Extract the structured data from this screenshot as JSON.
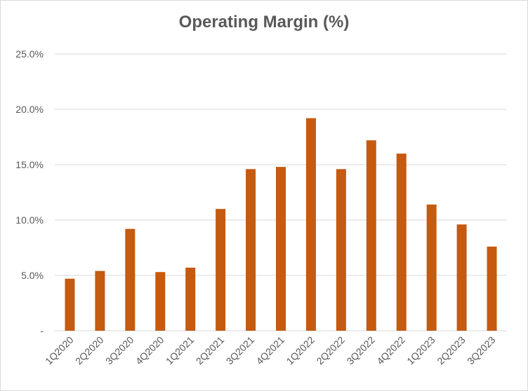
{
  "chart_data": {
    "type": "bar",
    "title": "Operating Margin (%)",
    "xlabel": "",
    "ylabel": "",
    "categories": [
      "1Q2020",
      "2Q2020",
      "3Q2020",
      "4Q2020",
      "1Q2021",
      "2Q2021",
      "3Q2021",
      "4Q2021",
      "1Q2022",
      "2Q2022",
      "3Q2022",
      "4Q2022",
      "1Q2023",
      "2Q2023",
      "3Q2023"
    ],
    "values": [
      4.7,
      5.4,
      9.2,
      5.3,
      5.7,
      11.0,
      14.6,
      14.8,
      19.2,
      14.6,
      17.2,
      16.0,
      11.4,
      9.6,
      7.6
    ],
    "ylim": [
      0,
      25
    ],
    "y_ticks": [
      0,
      5,
      10,
      15,
      20,
      25
    ],
    "y_tick_labels": [
      "-",
      "5.0%",
      "10.0%",
      "15.0%",
      "20.0%",
      "25.0%"
    ],
    "grid": true,
    "legend": "none",
    "bar_color": "#c55a11",
    "grid_color": "#d9d9d9"
  }
}
